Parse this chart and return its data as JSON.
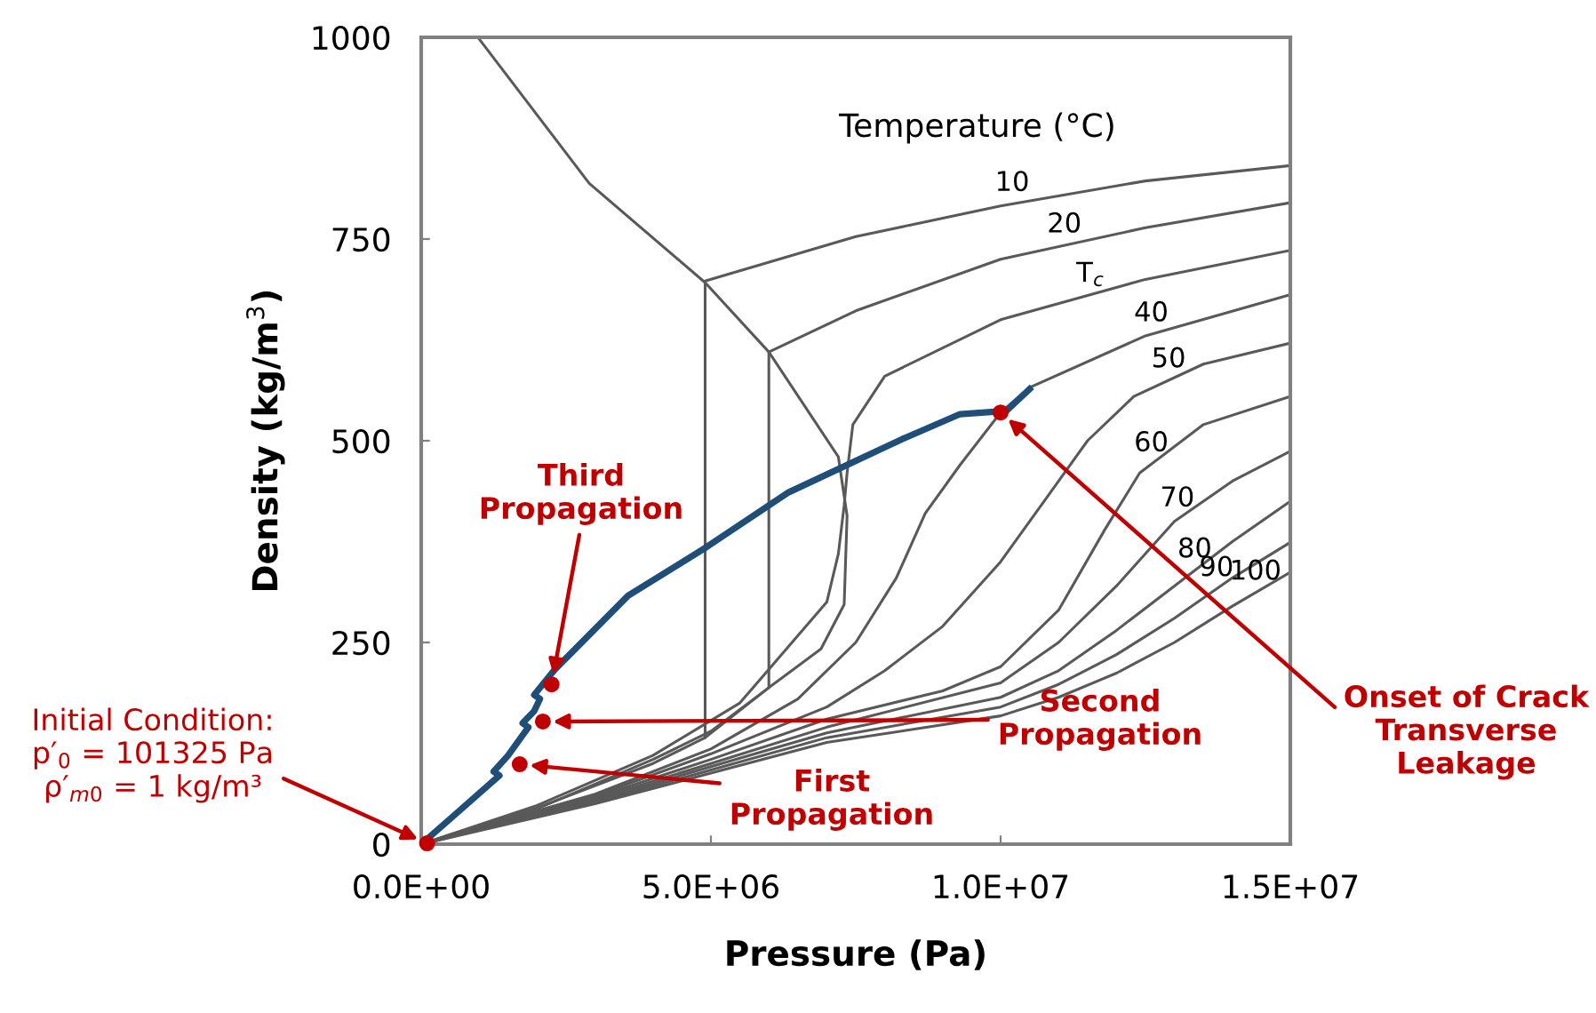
{
  "chart_data": {
    "type": "line",
    "xlabel": "Pressure (Pa)",
    "ylabel": "Density (kg/m$^{3}$)",
    "xlim": [
      0,
      15000000
    ],
    "ylim": [
      0,
      1000
    ],
    "xticks": [
      {
        "value": 0,
        "label": "0.0E+00"
      },
      {
        "value": 5000000,
        "label": "5.0E+06"
      },
      {
        "value": 10000000,
        "label": "1.0E+07"
      },
      {
        "value": 15000000,
        "label": "1.5E+07"
      }
    ],
    "yticks": [
      0,
      250,
      500,
      750,
      1000
    ],
    "grid": false,
    "marker": "none",
    "line_style": "solid",
    "series": [
      {
        "color": "#595959",
        "x": [
          1000000,
          2900000,
          4900000,
          6000000,
          7200000,
          7350000,
          7300000,
          6900000,
          6000000,
          4900000
        ],
        "values": [
          998,
          819,
          696,
          610,
          480,
          407,
          297,
          242,
          194,
          132
        ]
      },
      {
        "name": "10",
        "color": "#595959",
        "x": [
          0,
          2000000,
          4000000,
          4900000,
          4900000,
          7500000,
          10000000,
          12500000,
          15000000
        ],
        "values": [
          0,
          45,
          100,
          132,
          698,
          753,
          791,
          822,
          841
        ]
      },
      {
        "name": "20",
        "color": "#595959",
        "x": [
          0,
          2000000,
          4000000,
          5000000,
          6000000,
          6000000,
          7500000,
          10000000,
          12500000,
          15000000
        ],
        "values": [
          0,
          44,
          105,
          140,
          194,
          610,
          661,
          725,
          764,
          795
        ]
      },
      {
        "name": "T$_{c}$",
        "color": "#595959",
        "x": [
          0,
          2000000,
          4000000,
          5500000,
          7000000,
          7200000,
          7300000,
          7350000,
          7450000,
          8000000,
          10000000,
          12500000,
          15000000
        ],
        "values": [
          0,
          48,
          110,
          175,
          300,
          360,
          420,
          460,
          520,
          580,
          650,
          700,
          736
        ]
      },
      {
        "name": "40",
        "color": "#595959",
        "x": [
          0,
          3000000,
          5000000,
          6500000,
          7500000,
          8200000,
          8700000,
          9300000,
          10000000,
          10500000,
          12500000,
          15000000
        ],
        "values": [
          0,
          62,
          118,
          180,
          250,
          330,
          410,
          470,
          535,
          566,
          630,
          681
        ]
      },
      {
        "name": "50",
        "color": "#595959",
        "x": [
          0,
          3000000,
          5000000,
          7000000,
          8000000,
          9000000,
          10000000,
          10800000,
          11500000,
          12300000,
          13500000,
          15000000
        ],
        "values": [
          0,
          60,
          112,
          170,
          215,
          270,
          350,
          430,
          500,
          555,
          595,
          621
        ]
      },
      {
        "name": "60",
        "color": "#595959",
        "x": [
          0,
          3000000,
          5000000,
          7000000,
          9000000,
          10000000,
          11000000,
          11800000,
          12400000,
          13500000,
          15000000
        ],
        "values": [
          0,
          58,
          105,
          155,
          190,
          220,
          290,
          390,
          460,
          520,
          555
        ]
      },
      {
        "name": "70",
        "color": "#595959",
        "x": [
          0,
          3000000,
          5000000,
          7000000,
          10000000,
          11000000,
          12000000,
          13000000,
          14000000,
          15000000
        ],
        "values": [
          0,
          56,
          100,
          145,
          200,
          250,
          320,
          400,
          450,
          487
        ]
      },
      {
        "name": "80",
        "color": "#595959",
        "x": [
          0,
          3000000,
          5000000,
          7000000,
          10000000,
          11000000,
          12000000,
          13000000,
          14000000,
          15000000
        ],
        "values": [
          0,
          54,
          96,
          138,
          182,
          215,
          265,
          320,
          375,
          425
        ]
      },
      {
        "name": "90",
        "color": "#595959",
        "x": [
          0,
          3000000,
          5000000,
          7000000,
          10000000,
          11000000,
          12000000,
          13000000,
          14000000,
          15000000
        ],
        "values": [
          0,
          52,
          92,
          132,
          170,
          198,
          235,
          280,
          330,
          374
        ]
      },
      {
        "name": "100",
        "color": "#595959",
        "x": [
          0,
          3000000,
          5000000,
          7000000,
          10000000,
          11000000,
          12000000,
          13000000,
          14000000,
          15000000
        ],
        "values": [
          0,
          50,
          88,
          126,
          159,
          182,
          212,
          250,
          295,
          337
        ]
      },
      {
        "color": "#1f4e79",
        "x": [
          0,
          1350000,
          1250000,
          1500000,
          1850000,
          1750000,
          1950000,
          2050000,
          1950000,
          2300000,
          3570000,
          4920000,
          6340000,
          8300000,
          9300000,
          10100000,
          10500000
        ],
        "values": [
          0,
          85,
          90,
          110,
          145,
          150,
          165,
          180,
          185,
          216,
          308,
          368,
          436,
          502,
          533,
          537,
          564
        ]
      },
      {
        "type": "scatter",
        "marker": "circle",
        "color": "#c00000",
        "x": [
          101325,
          1700000,
          2100000,
          2250000,
          10000000
        ],
        "values": [
          1,
          99,
          152,
          198,
          535
        ]
      }
    ],
    "annotations": [
      "Temperature (°C)",
      {
        "text": "Third\nPropagation",
        "x": 2250000,
        "y": 198
      },
      {
        "text": "Second\nPropagation",
        "x": 2100000,
        "y": 152
      },
      {
        "text": "First\nPropagation",
        "x": 1700000,
        "y": 99
      },
      {
        "text": "Initial Condition:\np′$_{0}$ = 101325 Pa\nρ′$_{m0}$ = 1 kg/m³",
        "x": 101325,
        "y": 1
      },
      {
        "text": "Onset of Crack\nTransverse\nLeakage",
        "x": 10000000,
        "y": 535
      }
    ]
  }
}
